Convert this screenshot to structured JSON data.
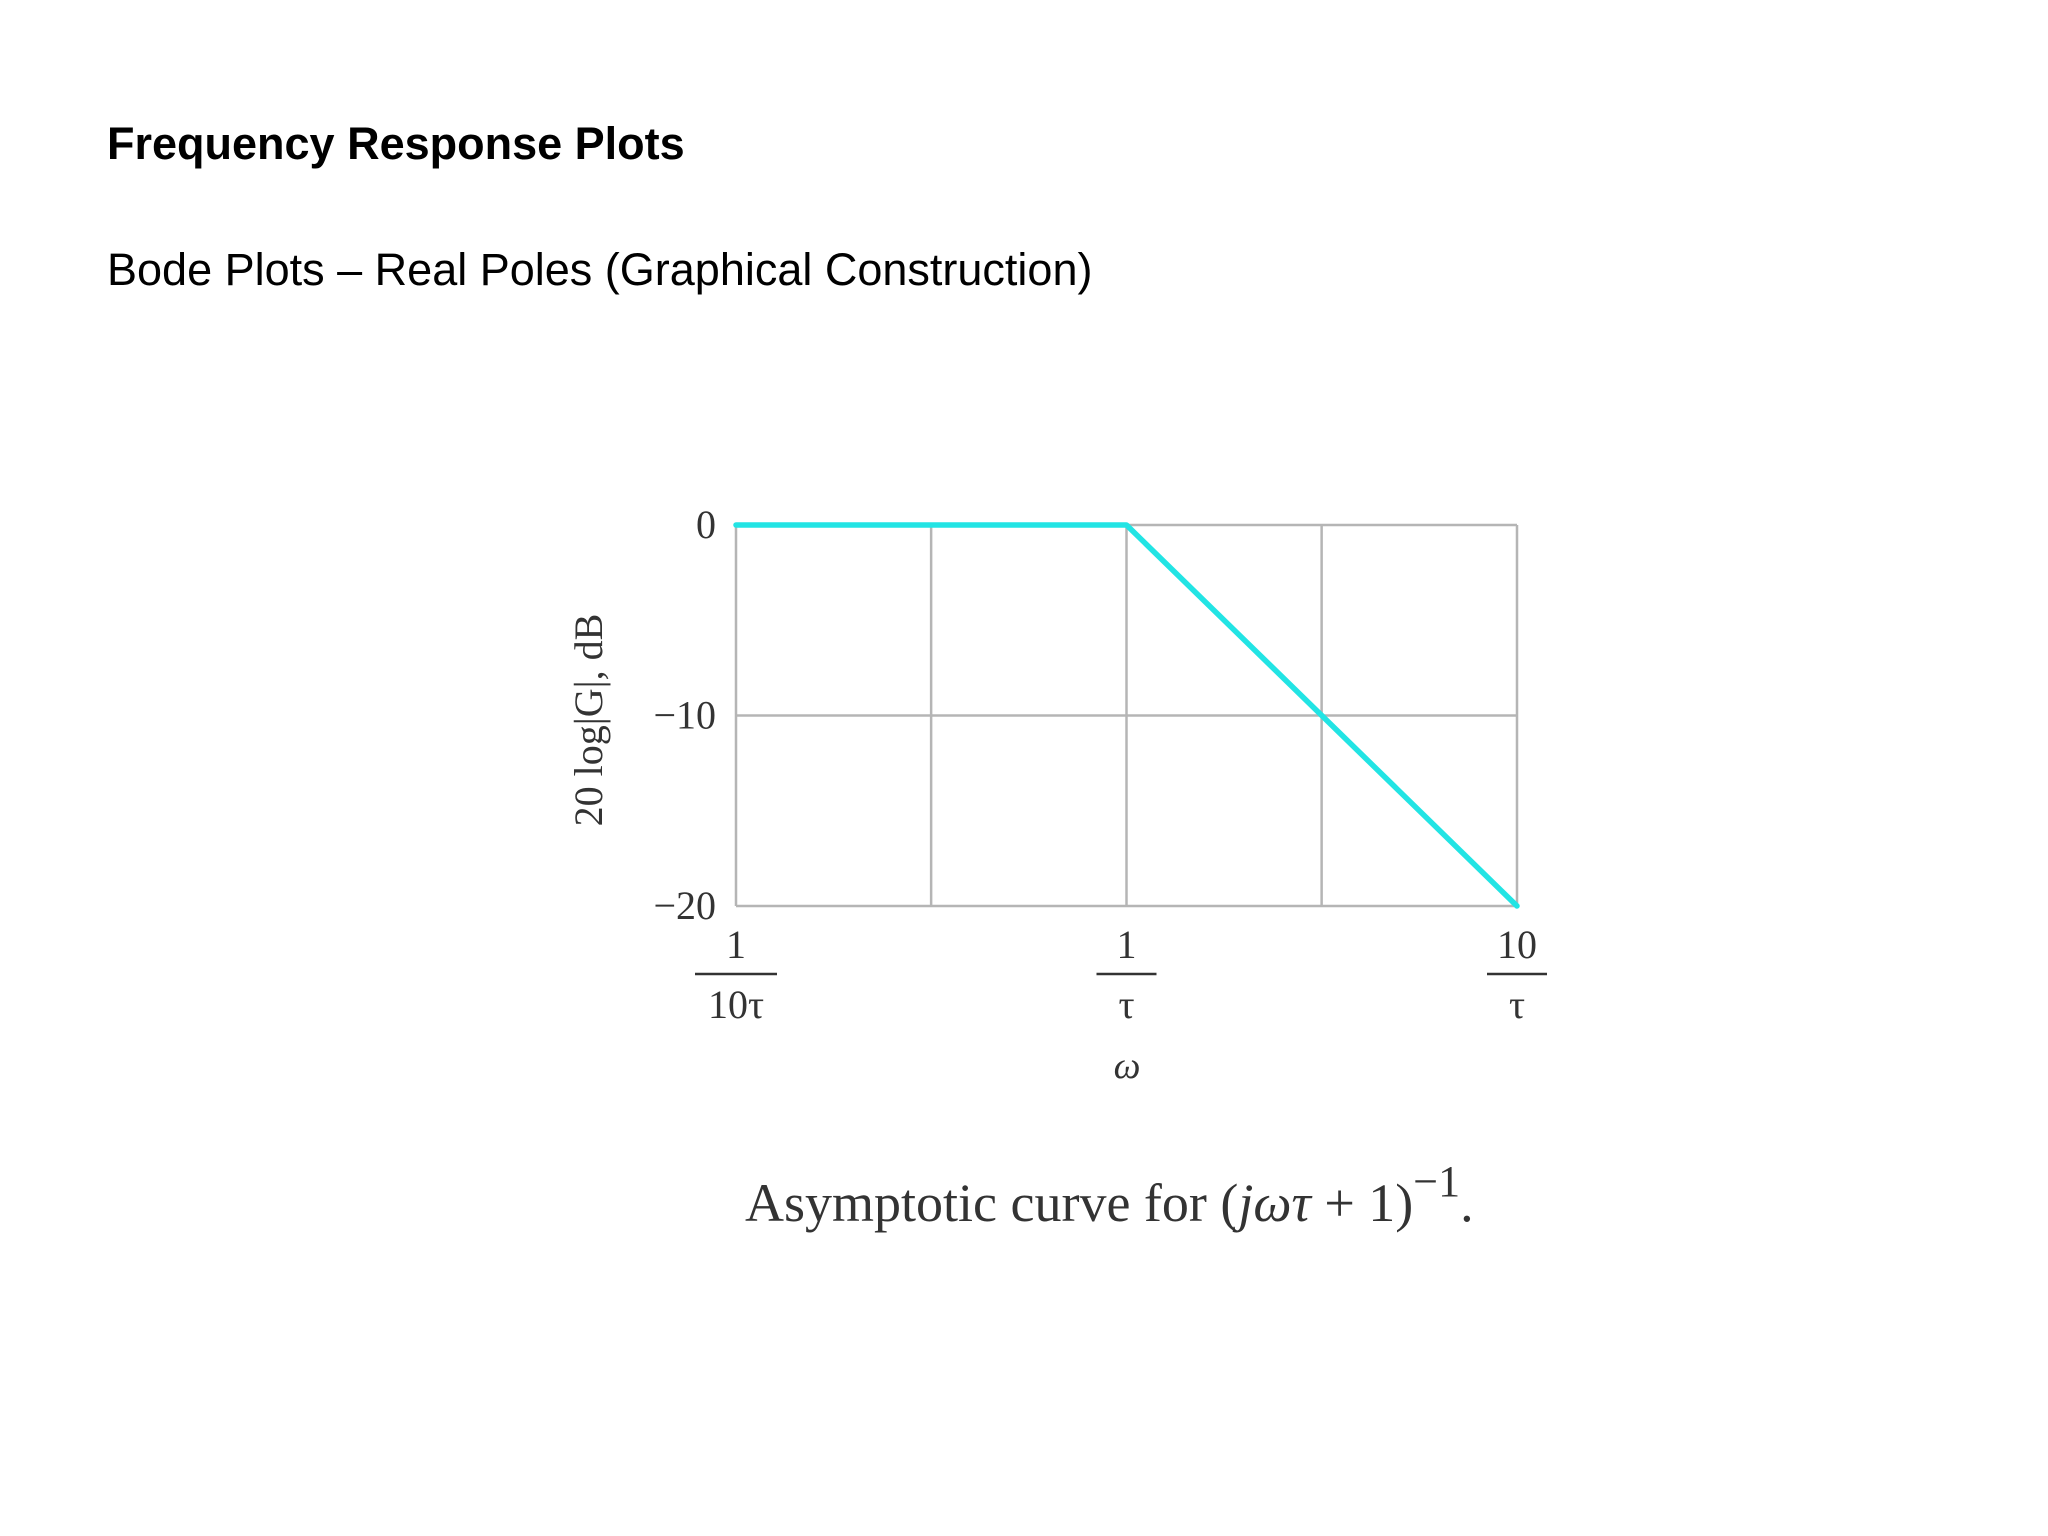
{
  "slide": {
    "title": "Frequency Response Plots",
    "subtitle": "Bode Plots – Real Poles (Graphical Construction)"
  },
  "caption": {
    "prefix": "Asymptotic curve for (",
    "expr_italic": "jωτ",
    "middle": " + 1)",
    "exponent": "−1",
    "suffix": "."
  },
  "chart_data": {
    "type": "line",
    "xscale": "log",
    "ylabel": "20 log|G|, dB",
    "xlabel": "ω",
    "xlim": [
      0.1,
      10
    ],
    "ylim": [
      -20,
      0
    ],
    "y_ticks": [
      {
        "value": 0,
        "label": "0"
      },
      {
        "value": -10,
        "label": "−10"
      },
      {
        "value": -20,
        "label": "−20"
      }
    ],
    "x_ticks": [
      {
        "value": 0.1,
        "num": "1",
        "den": "10τ"
      },
      {
        "value": 1,
        "num": "1",
        "den": "τ"
      },
      {
        "value": 10,
        "num": "10",
        "den": "τ"
      }
    ],
    "x_gridlines": [
      0.1,
      0.316,
      1,
      3.16,
      10
    ],
    "y_gridlines": [
      0,
      -10,
      -20
    ],
    "grid": true,
    "series": [
      {
        "color": "#22e4e4",
        "points": [
          {
            "x": 0.1,
            "y": 0
          },
          {
            "x": 1,
            "y": 0
          },
          {
            "x": 10,
            "y": -20
          }
        ]
      }
    ]
  }
}
